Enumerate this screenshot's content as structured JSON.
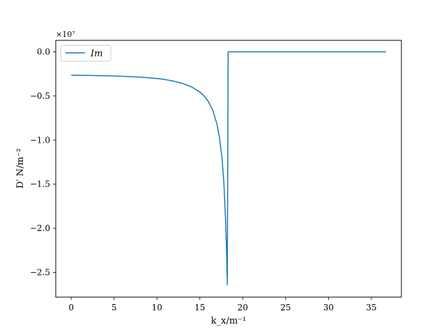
{
  "chart_data": {
    "type": "line",
    "title": "",
    "xlabel": "k_x/m⁻¹",
    "ylabel": "D′ N/m⁻²",
    "y_offset_label": "×10⁷",
    "xlim": [
      -1.8,
      38.5
    ],
    "ylim": [
      -2.78,
      0.13
    ],
    "x_ticks": [
      0,
      5,
      10,
      15,
      20,
      25,
      30,
      35
    ],
    "x_tick_labels": [
      "0",
      "5",
      "10",
      "15",
      "20",
      "25",
      "30",
      "35"
    ],
    "y_ticks": [
      0.0,
      -0.5,
      -1.0,
      -1.5,
      -2.0,
      -2.5
    ],
    "y_tick_labels": [
      "0.0",
      "−0.5",
      "−1.0",
      "−1.5",
      "−2.0",
      "−2.5"
    ],
    "legend": {
      "placement": "top-left",
      "entries": [
        "Im"
      ]
    },
    "grid": false,
    "series": [
      {
        "name": "Im",
        "color": "#1f77b4",
        "x": [
          0,
          2,
          4,
          6,
          8,
          10,
          11,
          12,
          13,
          14,
          15,
          15.5,
          16,
          16.5,
          17,
          17.3,
          17.6,
          17.8,
          18.0,
          18.1,
          18.2,
          18.3,
          18.4,
          20,
          25,
          30,
          36.7
        ],
        "y": [
          -0.265,
          -0.267,
          -0.271,
          -0.277,
          -0.286,
          -0.302,
          -0.315,
          -0.333,
          -0.359,
          -0.396,
          -0.455,
          -0.5,
          -0.565,
          -0.66,
          -0.82,
          -0.98,
          -1.22,
          -1.48,
          -1.9,
          -2.2,
          -2.64,
          0.0,
          0.0,
          0.0,
          0.0,
          0.0,
          0.0
        ]
      }
    ]
  }
}
